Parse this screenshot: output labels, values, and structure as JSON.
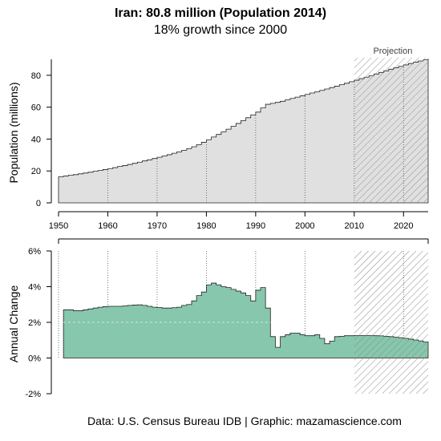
{
  "title": "Iran: 80.8 million (Population 2014)",
  "subtitle": "18% growth since 2000",
  "caption": "Data: U.S. Census Bureau IDB | Graphic: mazamascience.com",
  "colors": {
    "population_fill": "#e0e0e0",
    "growth_fill": "#86c7ad",
    "hatch": "#888888"
  },
  "chart_data": [
    {
      "type": "area",
      "step": true,
      "ylabel": "Population (millions)",
      "xlabel": "",
      "xlim": [
        1950,
        2025
      ],
      "ylim": [
        0,
        90
      ],
      "x_ticks": [
        "1950",
        "1960",
        "1970",
        "1980",
        "1990",
        "2000",
        "2010",
        "2020"
      ],
      "y_ticks": [
        "0",
        "20",
        "40",
        "60",
        "80"
      ],
      "projection_start": 2010,
      "projection_label": "Projection",
      "vertical_gridlines": [
        1960,
        1970,
        1980,
        1990,
        2000,
        2010,
        2020
      ],
      "series": [
        {
          "x": [
            1950,
            1951,
            1952,
            1953,
            1954,
            1955,
            1956,
            1957,
            1958,
            1959,
            1960,
            1961,
            1962,
            1963,
            1964,
            1965,
            1966,
            1967,
            1968,
            1969,
            1970,
            1971,
            1972,
            1973,
            1974,
            1975,
            1976,
            1977,
            1978,
            1979,
            1980,
            1981,
            1982,
            1983,
            1984,
            1985,
            1986,
            1987,
            1988,
            1989,
            1990,
            1991,
            1992,
            1993,
            1994,
            1995,
            1996,
            1997,
            1998,
            1999,
            2000,
            2001,
            2002,
            2003,
            2004,
            2005,
            2006,
            2007,
            2008,
            2009,
            2010,
            2011,
            2012,
            2013,
            2014,
            2015,
            2016,
            2017,
            2018,
            2019,
            2020,
            2021,
            2022,
            2023,
            2024,
            2025
          ],
          "values": [
            16.4,
            16.8,
            17.3,
            17.7,
            18.2,
            18.7,
            19.2,
            19.8,
            20.3,
            20.9,
            21.5,
            22.1,
            22.8,
            23.4,
            24.1,
            24.8,
            25.5,
            26.3,
            27.0,
            27.8,
            28.6,
            29.4,
            30.2,
            31.1,
            32.0,
            33.0,
            34.0,
            35.2,
            36.5,
            38.0,
            39.6,
            41.3,
            42.9,
            44.5,
            46.2,
            48.0,
            49.8,
            51.6,
            53.4,
            55.2,
            56.9,
            59.5,
            61.8,
            62.4,
            63.0,
            63.7,
            64.6,
            65.5,
            66.3,
            67.1,
            68.0,
            68.9,
            69.7,
            70.5,
            71.4,
            72.3,
            73.2,
            74.1,
            75.0,
            76.0,
            76.9,
            77.9,
            78.8,
            79.8,
            80.8,
            81.8,
            82.8,
            83.8,
            84.7,
            85.6,
            86.5,
            87.4,
            88.2,
            89.0,
            89.7,
            90.4
          ]
        }
      ]
    },
    {
      "type": "area",
      "step": true,
      "ylabel": "Annual Change",
      "xlabel": "",
      "xlim": [
        1950,
        2025
      ],
      "ylim": [
        -2,
        6
      ],
      "y_ticks": [
        "6%",
        "4%",
        "2%",
        "0%",
        "-2%"
      ],
      "y_tick_values": [
        6,
        4,
        2,
        0,
        -2
      ],
      "projection_start": 2010,
      "vertical_gridlines": [
        1950,
        1960,
        1970,
        1980,
        1990,
        2000,
        2020
      ],
      "series": [
        {
          "x": [
            1951,
            1952,
            1953,
            1954,
            1955,
            1956,
            1957,
            1958,
            1959,
            1960,
            1961,
            1962,
            1963,
            1964,
            1965,
            1966,
            1967,
            1968,
            1969,
            1970,
            1971,
            1972,
            1973,
            1974,
            1975,
            1976,
            1977,
            1978,
            1979,
            1980,
            1981,
            1982,
            1983,
            1984,
            1985,
            1986,
            1987,
            1988,
            1989,
            1990,
            1991,
            1992,
            1993,
            1994,
            1995,
            1996,
            1997,
            1998,
            1999,
            2000,
            2001,
            2002,
            2003,
            2004,
            2005,
            2006,
            2007,
            2008,
            2009,
            2010,
            2011,
            2012,
            2013,
            2014,
            2015,
            2016,
            2017,
            2018,
            2019,
            2020,
            2021,
            2022,
            2023,
            2024,
            2025
          ],
          "values": [
            2.7,
            2.7,
            2.65,
            2.65,
            2.7,
            2.75,
            2.8,
            2.85,
            2.88,
            2.9,
            2.9,
            2.9,
            2.92,
            2.95,
            2.97,
            2.98,
            2.95,
            2.9,
            2.85,
            2.83,
            2.8,
            2.8,
            2.82,
            2.85,
            2.95,
            3.0,
            3.2,
            3.5,
            3.7,
            4.1,
            4.2,
            4.1,
            4.0,
            3.95,
            3.85,
            3.75,
            3.65,
            3.5,
            3.2,
            3.8,
            3.95,
            2.8,
            1.2,
            0.6,
            1.2,
            1.3,
            1.4,
            1.4,
            1.3,
            1.25,
            1.25,
            1.3,
            1.1,
            0.8,
            0.95,
            1.2,
            1.22,
            1.25,
            1.25,
            1.26,
            1.26,
            1.26,
            1.26,
            1.25,
            1.24,
            1.22,
            1.2,
            1.17,
            1.14,
            1.1,
            1.06,
            1.01,
            0.96,
            0.9,
            0.84
          ]
        }
      ]
    }
  ]
}
